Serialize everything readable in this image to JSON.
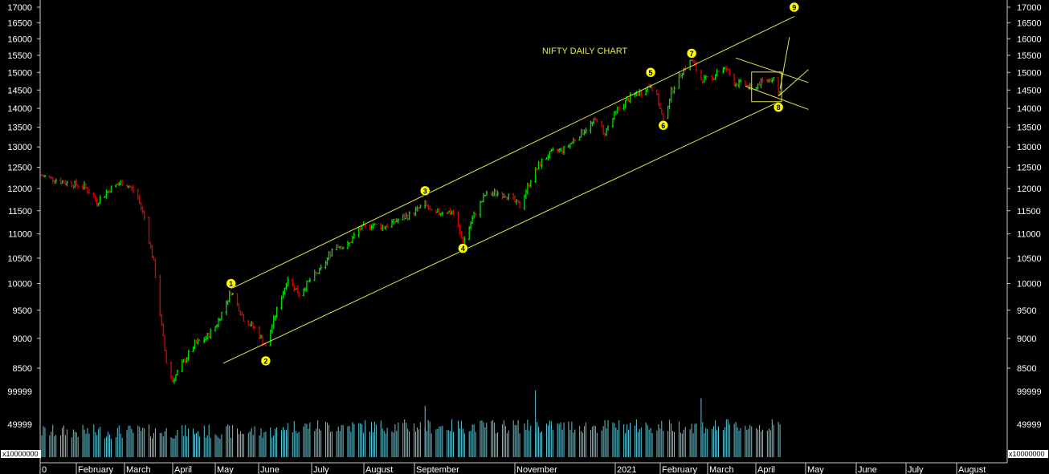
{
  "chart_data": {
    "type": "candlestick",
    "title": "NIFTY DAILY CHART",
    "price_axis": {
      "ticks": [
        8500,
        9000,
        9500,
        10000,
        10500,
        11000,
        11500,
        12000,
        12500,
        13000,
        13500,
        14000,
        14500,
        15000,
        15500,
        16000,
        16500,
        17000
      ],
      "range": [
        8500,
        17000
      ]
    },
    "volume_axis": {
      "ticks": [
        49999,
        99999
      ],
      "multiplier_label": "x10000000",
      "range": [
        0,
        110000
      ]
    },
    "x_axis": {
      "labels": [
        "0",
        "February",
        "March",
        "April",
        "May",
        "June",
        "July",
        "August",
        "September",
        "November",
        "2021",
        "February",
        "March",
        "April",
        "May",
        "June",
        "July",
        "August"
      ]
    },
    "colors": {
      "up": "#00dd00",
      "down": "#dd0000",
      "volume": "#5fc8d8",
      "lines": "#e8e84a",
      "text": "#ffffff",
      "axis": "#cccccc"
    },
    "price_path": [
      [
        "2020-01-01",
        12300
      ],
      [
        "2020-01-15",
        12150
      ],
      [
        "2020-01-28",
        12050
      ],
      [
        "2020-02-05",
        11700
      ],
      [
        "2020-02-15",
        12050
      ],
      [
        "2020-02-22",
        12150
      ],
      [
        "2020-03-01",
        11900
      ],
      [
        "2020-03-06",
        11350
      ],
      [
        "2020-03-12",
        10400
      ],
      [
        "2020-03-17",
        9200
      ],
      [
        "2020-03-20",
        8600
      ],
      [
        "2020-03-24",
        8300
      ],
      [
        "2020-03-31",
        8600
      ],
      [
        "2020-04-07",
        8900
      ],
      [
        "2020-04-14",
        9000
      ],
      [
        "2020-04-21",
        9250
      ],
      [
        "2020-04-30",
        9850
      ],
      [
        "2020-05-08",
        9350
      ],
      [
        "2020-05-16",
        9150
      ],
      [
        "2020-05-22",
        8850
      ],
      [
        "2020-05-29",
        9500
      ],
      [
        "2020-06-05",
        10100
      ],
      [
        "2020-06-12",
        9800
      ],
      [
        "2020-06-20",
        10100
      ],
      [
        "2020-06-27",
        10300
      ],
      [
        "2020-07-05",
        10800
      ],
      [
        "2020-07-12",
        10700
      ],
      [
        "2020-07-20",
        11100
      ],
      [
        "2020-07-28",
        11200
      ],
      [
        "2020-08-05",
        11150
      ],
      [
        "2020-08-14",
        11300
      ],
      [
        "2020-08-21",
        11400
      ],
      [
        "2020-08-31",
        11650
      ],
      [
        "2020-09-05",
        11400
      ],
      [
        "2020-09-12",
        11500
      ],
      [
        "2020-09-18",
        11450
      ],
      [
        "2020-09-24",
        10800
      ],
      [
        "2020-10-01",
        11400
      ],
      [
        "2020-10-08",
        11850
      ],
      [
        "2020-10-15",
        11900
      ],
      [
        "2020-10-22",
        11850
      ],
      [
        "2020-10-30",
        11600
      ],
      [
        "2020-11-07",
        12300
      ],
      [
        "2020-11-14",
        12700
      ],
      [
        "2020-11-21",
        12900
      ],
      [
        "2020-11-28",
        12950
      ],
      [
        "2020-12-05",
        13250
      ],
      [
        "2020-12-12",
        13500
      ],
      [
        "2020-12-19",
        13750
      ],
      [
        "2020-12-22",
        13300
      ],
      [
        "2020-12-31",
        13950
      ],
      [
        "2021-01-08",
        14300
      ],
      [
        "2021-01-15",
        14450
      ],
      [
        "2021-01-21",
        14650
      ],
      [
        "2021-01-25",
        14300
      ],
      [
        "2021-01-29",
        13650
      ],
      [
        "2021-02-03",
        14450
      ],
      [
        "2021-02-10",
        15050
      ],
      [
        "2021-02-16",
        15350
      ],
      [
        "2021-02-22",
        14800
      ],
      [
        "2021-03-01",
        14800
      ],
      [
        "2021-03-04",
        15050
      ],
      [
        "2021-03-10",
        15100
      ],
      [
        "2021-03-15",
        14700
      ],
      [
        "2021-03-22",
        14650
      ],
      [
        "2021-03-26",
        14500
      ],
      [
        "2021-03-31",
        14700
      ],
      [
        "2021-04-06",
        14800
      ],
      [
        "2021-04-09",
        14850
      ],
      [
        "2021-04-12",
        14350
      ],
      [
        "2021-04-13",
        14500
      ]
    ],
    "wave_labels": [
      {
        "label": "1",
        "date": "2020-04-30",
        "value": 10000
      },
      {
        "label": "2",
        "date": "2020-05-22",
        "value": 8620
      },
      {
        "label": "3",
        "date": "2020-08-31",
        "value": 11950
      },
      {
        "label": "4",
        "date": "2020-09-24",
        "value": 10700
      },
      {
        "label": "5",
        "date": "2021-01-21",
        "value": 15000
      },
      {
        "label": "6",
        "date": "2021-01-29",
        "value": 13550
      },
      {
        "label": "7",
        "date": "2021-02-16",
        "value": 15560
      },
      {
        "label": "8",
        "date": "2021-04-12",
        "value": 14030
      },
      {
        "label": "9",
        "date": "2021-04-22",
        "value": 17000
      }
    ],
    "trendlines": [
      {
        "from": [
          "2020-04-30",
          9900
        ],
        "to": [
          "2021-04-22",
          16700
        ]
      },
      {
        "from": [
          "2020-04-25",
          8580
        ],
        "to": [
          "2021-04-12",
          14170
        ]
      },
      {
        "from": [
          "2021-03-16",
          15420
        ],
        "to": [
          "2021-05-01",
          14710
        ]
      },
      {
        "from": [
          "2021-03-22",
          14610
        ],
        "to": [
          "2021-05-01",
          13970
        ]
      },
      {
        "from": [
          "2021-04-12",
          14330
        ],
        "to": [
          "2021-05-01",
          15080
        ]
      },
      {
        "from": [
          "2021-04-13",
          14520
        ],
        "to": [
          "2021-04-19",
          16050
        ]
      }
    ],
    "box": {
      "from": [
        "2021-03-26",
        15010
      ],
      "to": [
        "2021-04-14",
        14180
      ]
    }
  }
}
